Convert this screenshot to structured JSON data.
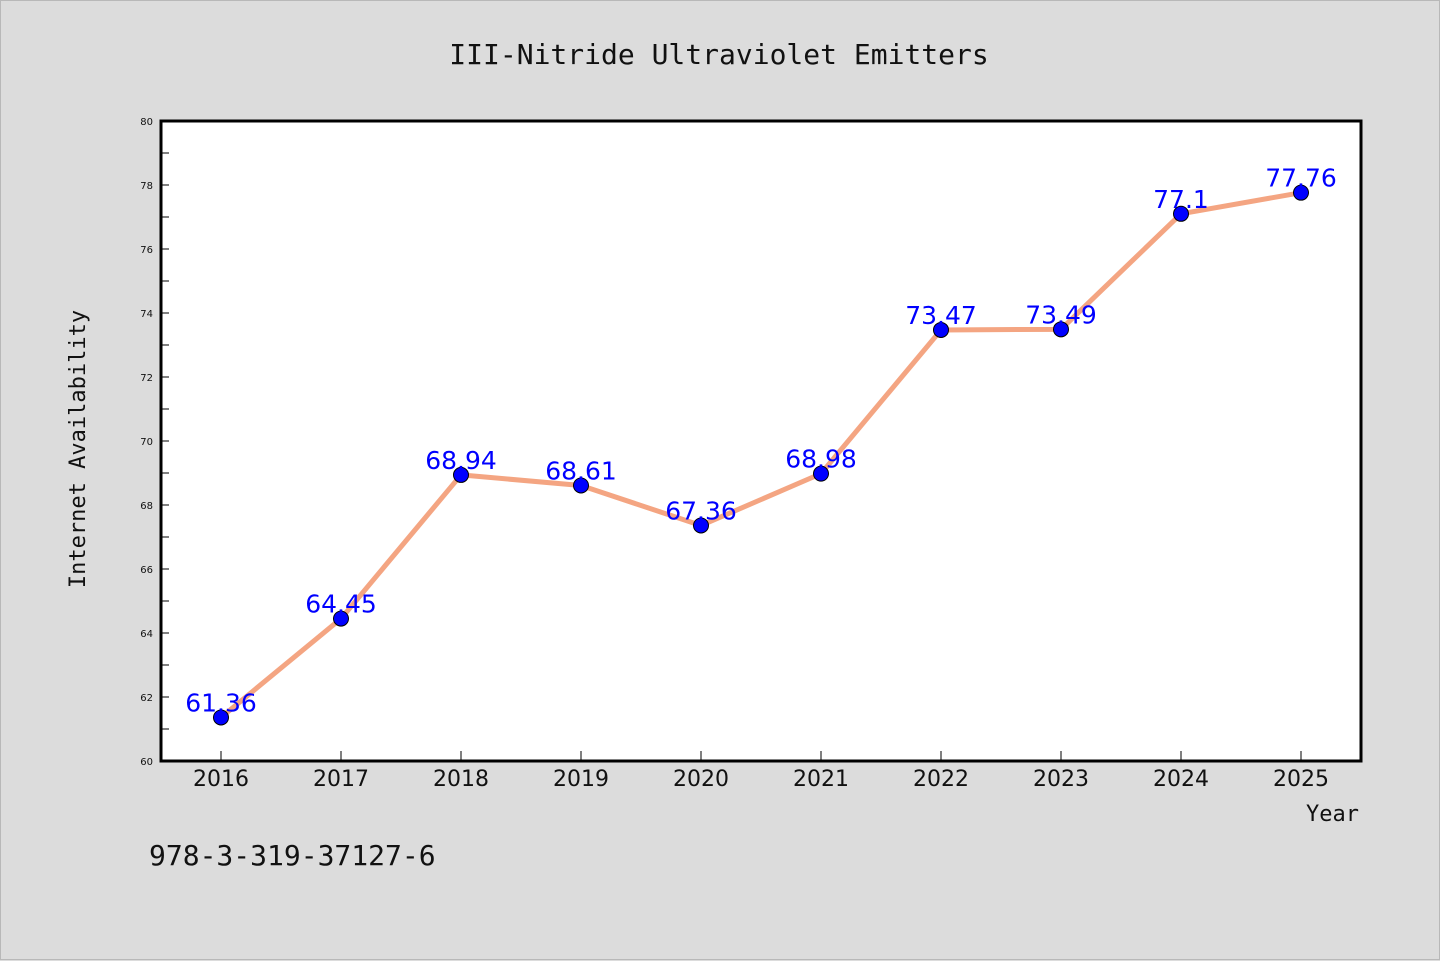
{
  "footer_text": "978-3-319-37127-6",
  "chart_data": {
    "type": "line",
    "title": "III-Nitride Ultraviolet Emitters",
    "xlabel": "Year",
    "ylabel": "Internet Availability",
    "categories": [
      "2016",
      "2017",
      "2018",
      "2019",
      "2020",
      "2021",
      "2022",
      "2023",
      "2024",
      "2025"
    ],
    "values": [
      61.36,
      64.45,
      68.94,
      68.61,
      67.36,
      68.98,
      73.47,
      73.49,
      77.1,
      77.76
    ],
    "data_labels": [
      "61.36",
      "64.45",
      "68.94",
      "68.61",
      "67.36",
      "68.98",
      "73.47",
      "73.49",
      "77.1",
      "77.76"
    ],
    "ylim": [
      60,
      80
    ],
    "y_ticks": [
      60,
      62,
      64,
      66,
      68,
      70,
      72,
      74,
      76,
      78,
      80
    ],
    "grid": false,
    "line_color": "#f4a582",
    "marker_color": "#0000ff",
    "label_color": "#0000ff"
  }
}
